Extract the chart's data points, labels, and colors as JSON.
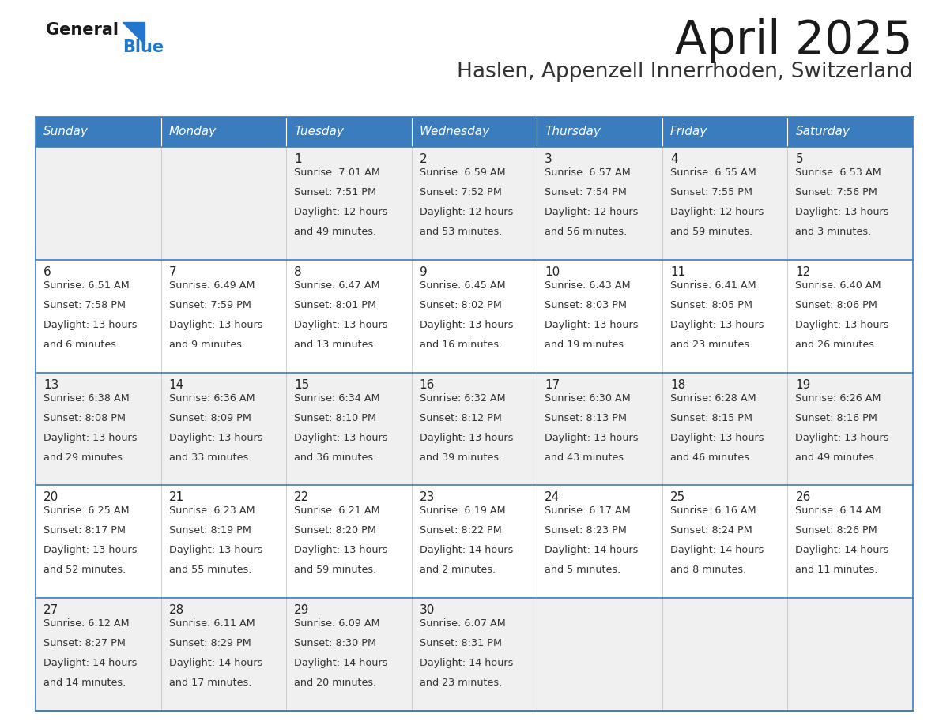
{
  "title": "April 2025",
  "subtitle": "Haslen, Appenzell Innerrhoden, Switzerland",
  "days_of_week": [
    "Sunday",
    "Monday",
    "Tuesday",
    "Wednesday",
    "Thursday",
    "Friday",
    "Saturday"
  ],
  "header_bg": "#3a7dbf",
  "header_text": "#ffffff",
  "row_bg_odd": "#f0f0f0",
  "row_bg_even": "#ffffff",
  "cell_text_color": "#333333",
  "border_color": "#3a7dbf",
  "border_color_light": "#3a7dbf",
  "calendar_data": [
    [
      {
        "day": null,
        "sunrise": null,
        "sunset": null,
        "daylight": null
      },
      {
        "day": null,
        "sunrise": null,
        "sunset": null,
        "daylight": null
      },
      {
        "day": 1,
        "sunrise": "7:01 AM",
        "sunset": "7:51 PM",
        "daylight": "12 hours and 49 minutes."
      },
      {
        "day": 2,
        "sunrise": "6:59 AM",
        "sunset": "7:52 PM",
        "daylight": "12 hours and 53 minutes."
      },
      {
        "day": 3,
        "sunrise": "6:57 AM",
        "sunset": "7:54 PM",
        "daylight": "12 hours and 56 minutes."
      },
      {
        "day": 4,
        "sunrise": "6:55 AM",
        "sunset": "7:55 PM",
        "daylight": "12 hours and 59 minutes."
      },
      {
        "day": 5,
        "sunrise": "6:53 AM",
        "sunset": "7:56 PM",
        "daylight": "13 hours and 3 minutes."
      }
    ],
    [
      {
        "day": 6,
        "sunrise": "6:51 AM",
        "sunset": "7:58 PM",
        "daylight": "13 hours and 6 minutes."
      },
      {
        "day": 7,
        "sunrise": "6:49 AM",
        "sunset": "7:59 PM",
        "daylight": "13 hours and 9 minutes."
      },
      {
        "day": 8,
        "sunrise": "6:47 AM",
        "sunset": "8:01 PM",
        "daylight": "13 hours and 13 minutes."
      },
      {
        "day": 9,
        "sunrise": "6:45 AM",
        "sunset": "8:02 PM",
        "daylight": "13 hours and 16 minutes."
      },
      {
        "day": 10,
        "sunrise": "6:43 AM",
        "sunset": "8:03 PM",
        "daylight": "13 hours and 19 minutes."
      },
      {
        "day": 11,
        "sunrise": "6:41 AM",
        "sunset": "8:05 PM",
        "daylight": "13 hours and 23 minutes."
      },
      {
        "day": 12,
        "sunrise": "6:40 AM",
        "sunset": "8:06 PM",
        "daylight": "13 hours and 26 minutes."
      }
    ],
    [
      {
        "day": 13,
        "sunrise": "6:38 AM",
        "sunset": "8:08 PM",
        "daylight": "13 hours and 29 minutes."
      },
      {
        "day": 14,
        "sunrise": "6:36 AM",
        "sunset": "8:09 PM",
        "daylight": "13 hours and 33 minutes."
      },
      {
        "day": 15,
        "sunrise": "6:34 AM",
        "sunset": "8:10 PM",
        "daylight": "13 hours and 36 minutes."
      },
      {
        "day": 16,
        "sunrise": "6:32 AM",
        "sunset": "8:12 PM",
        "daylight": "13 hours and 39 minutes."
      },
      {
        "day": 17,
        "sunrise": "6:30 AM",
        "sunset": "8:13 PM",
        "daylight": "13 hours and 43 minutes."
      },
      {
        "day": 18,
        "sunrise": "6:28 AM",
        "sunset": "8:15 PM",
        "daylight": "13 hours and 46 minutes."
      },
      {
        "day": 19,
        "sunrise": "6:26 AM",
        "sunset": "8:16 PM",
        "daylight": "13 hours and 49 minutes."
      }
    ],
    [
      {
        "day": 20,
        "sunrise": "6:25 AM",
        "sunset": "8:17 PM",
        "daylight": "13 hours and 52 minutes."
      },
      {
        "day": 21,
        "sunrise": "6:23 AM",
        "sunset": "8:19 PM",
        "daylight": "13 hours and 55 minutes."
      },
      {
        "day": 22,
        "sunrise": "6:21 AM",
        "sunset": "8:20 PM",
        "daylight": "13 hours and 59 minutes."
      },
      {
        "day": 23,
        "sunrise": "6:19 AM",
        "sunset": "8:22 PM",
        "daylight": "14 hours and 2 minutes."
      },
      {
        "day": 24,
        "sunrise": "6:17 AM",
        "sunset": "8:23 PM",
        "daylight": "14 hours and 5 minutes."
      },
      {
        "day": 25,
        "sunrise": "6:16 AM",
        "sunset": "8:24 PM",
        "daylight": "14 hours and 8 minutes."
      },
      {
        "day": 26,
        "sunrise": "6:14 AM",
        "sunset": "8:26 PM",
        "daylight": "14 hours and 11 minutes."
      }
    ],
    [
      {
        "day": 27,
        "sunrise": "6:12 AM",
        "sunset": "8:27 PM",
        "daylight": "14 hours and 14 minutes."
      },
      {
        "day": 28,
        "sunrise": "6:11 AM",
        "sunset": "8:29 PM",
        "daylight": "14 hours and 17 minutes."
      },
      {
        "day": 29,
        "sunrise": "6:09 AM",
        "sunset": "8:30 PM",
        "daylight": "14 hours and 20 minutes."
      },
      {
        "day": 30,
        "sunrise": "6:07 AM",
        "sunset": "8:31 PM",
        "daylight": "14 hours and 23 minutes."
      },
      {
        "day": null,
        "sunrise": null,
        "sunset": null,
        "daylight": null
      },
      {
        "day": null,
        "sunrise": null,
        "sunset": null,
        "daylight": null
      },
      {
        "day": null,
        "sunrise": null,
        "sunset": null,
        "daylight": null
      }
    ]
  ]
}
